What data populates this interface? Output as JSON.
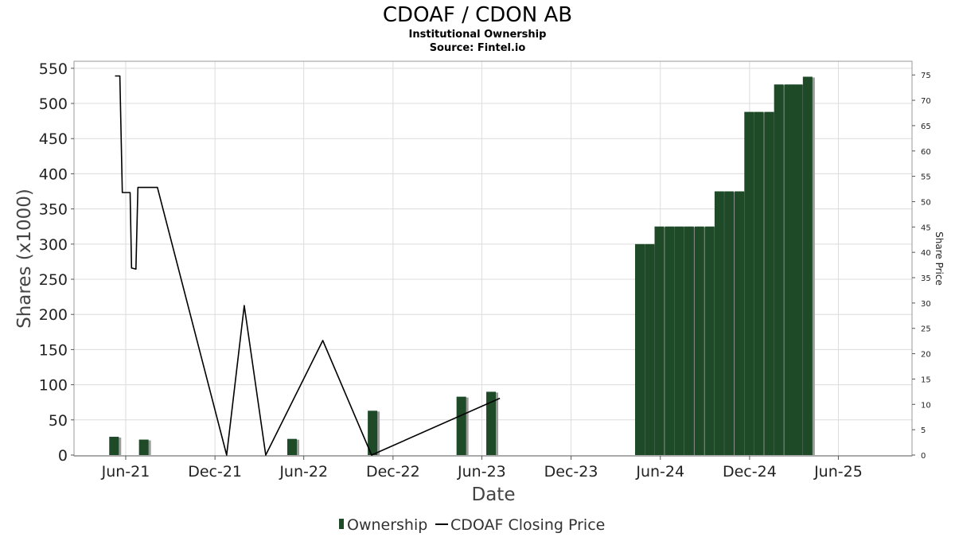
{
  "chart_data": {
    "type": "bar",
    "title": "CDOAF / CDON AB",
    "subtitle": "Institutional Ownership",
    "source": "Source: Fintel.io",
    "xlabel": "Date",
    "ylabel": "Shares (x1000)",
    "y2label": "Share Price",
    "ylim": [
      0,
      560
    ],
    "y2lim": [
      0,
      77.7
    ],
    "yticks": [
      0,
      50,
      100,
      150,
      200,
      250,
      300,
      350,
      400,
      450,
      500,
      550
    ],
    "y2ticks": [
      0,
      5,
      10,
      15,
      20,
      25,
      30,
      35,
      40,
      45,
      50,
      55,
      60,
      65,
      70,
      75
    ],
    "xrange": [
      "2021-02-15",
      "2025-10-30"
    ],
    "xticks": [
      {
        "label": "Jun-21",
        "date": "2021-06-01"
      },
      {
        "label": "Dec-21",
        "date": "2021-12-01"
      },
      {
        "label": "Jun-22",
        "date": "2022-06-01"
      },
      {
        "label": "Dec-22",
        "date": "2022-12-01"
      },
      {
        "label": "Jun-23",
        "date": "2023-06-01"
      },
      {
        "label": "Dec-23",
        "date": "2023-12-01"
      },
      {
        "label": "Jun-24",
        "date": "2024-06-01"
      },
      {
        "label": "Dec-24",
        "date": "2024-12-01"
      },
      {
        "label": "Jun-25",
        "date": "2025-06-01"
      }
    ],
    "grid": true,
    "legend_position": "bottom",
    "series": [
      {
        "name": "Ownership",
        "type": "bar",
        "color": "#1e4a28",
        "shadow_color": "#9a9a9a",
        "points": [
          {
            "date": "2021-05-08",
            "value": 26
          },
          {
            "date": "2021-07-08",
            "value": 22
          },
          {
            "date": "2022-05-08",
            "value": 23
          },
          {
            "date": "2022-10-20",
            "value": 63
          },
          {
            "date": "2023-04-20",
            "value": 83
          },
          {
            "date": "2023-06-20",
            "value": 90
          },
          {
            "date": "2024-04-20",
            "value": 300
          },
          {
            "date": "2024-05-10",
            "value": 300
          },
          {
            "date": "2024-05-30",
            "value": 325
          },
          {
            "date": "2024-06-20",
            "value": 325
          },
          {
            "date": "2024-07-10",
            "value": 325
          },
          {
            "date": "2024-07-30",
            "value": 325
          },
          {
            "date": "2024-08-20",
            "value": 325
          },
          {
            "date": "2024-09-10",
            "value": 325
          },
          {
            "date": "2024-09-30",
            "value": 375
          },
          {
            "date": "2024-10-20",
            "value": 375
          },
          {
            "date": "2024-11-10",
            "value": 375
          },
          {
            "date": "2024-11-30",
            "value": 488
          },
          {
            "date": "2024-12-20",
            "value": 488
          },
          {
            "date": "2025-01-10",
            "value": 488
          },
          {
            "date": "2025-01-30",
            "value": 527
          },
          {
            "date": "2025-02-20",
            "value": 527
          },
          {
            "date": "2025-03-10",
            "value": 527
          },
          {
            "date": "2025-03-30",
            "value": 538
          }
        ]
      },
      {
        "name": "CDOAF Closing Price",
        "type": "line",
        "axis": "right",
        "color": "#000000",
        "points": [
          {
            "date": "2021-05-10",
            "price": 74.8
          },
          {
            "date": "2021-05-20",
            "price": 74.8
          },
          {
            "date": "2021-05-25",
            "price": 51.8
          },
          {
            "date": "2021-06-10",
            "price": 51.8
          },
          {
            "date": "2021-06-13",
            "price": 36.9
          },
          {
            "date": "2021-06-22",
            "price": 36.7
          },
          {
            "date": "2021-06-26",
            "price": 52.8
          },
          {
            "date": "2021-08-05",
            "price": 52.8
          },
          {
            "date": "2021-12-25",
            "price": 0
          },
          {
            "date": "2022-01-30",
            "price": 29.5
          },
          {
            "date": "2022-03-15",
            "price": 0
          },
          {
            "date": "2022-07-10",
            "price": 22.6
          },
          {
            "date": "2022-10-18",
            "price": 0
          },
          {
            "date": "2023-07-08",
            "price": 11.2
          }
        ]
      }
    ]
  }
}
